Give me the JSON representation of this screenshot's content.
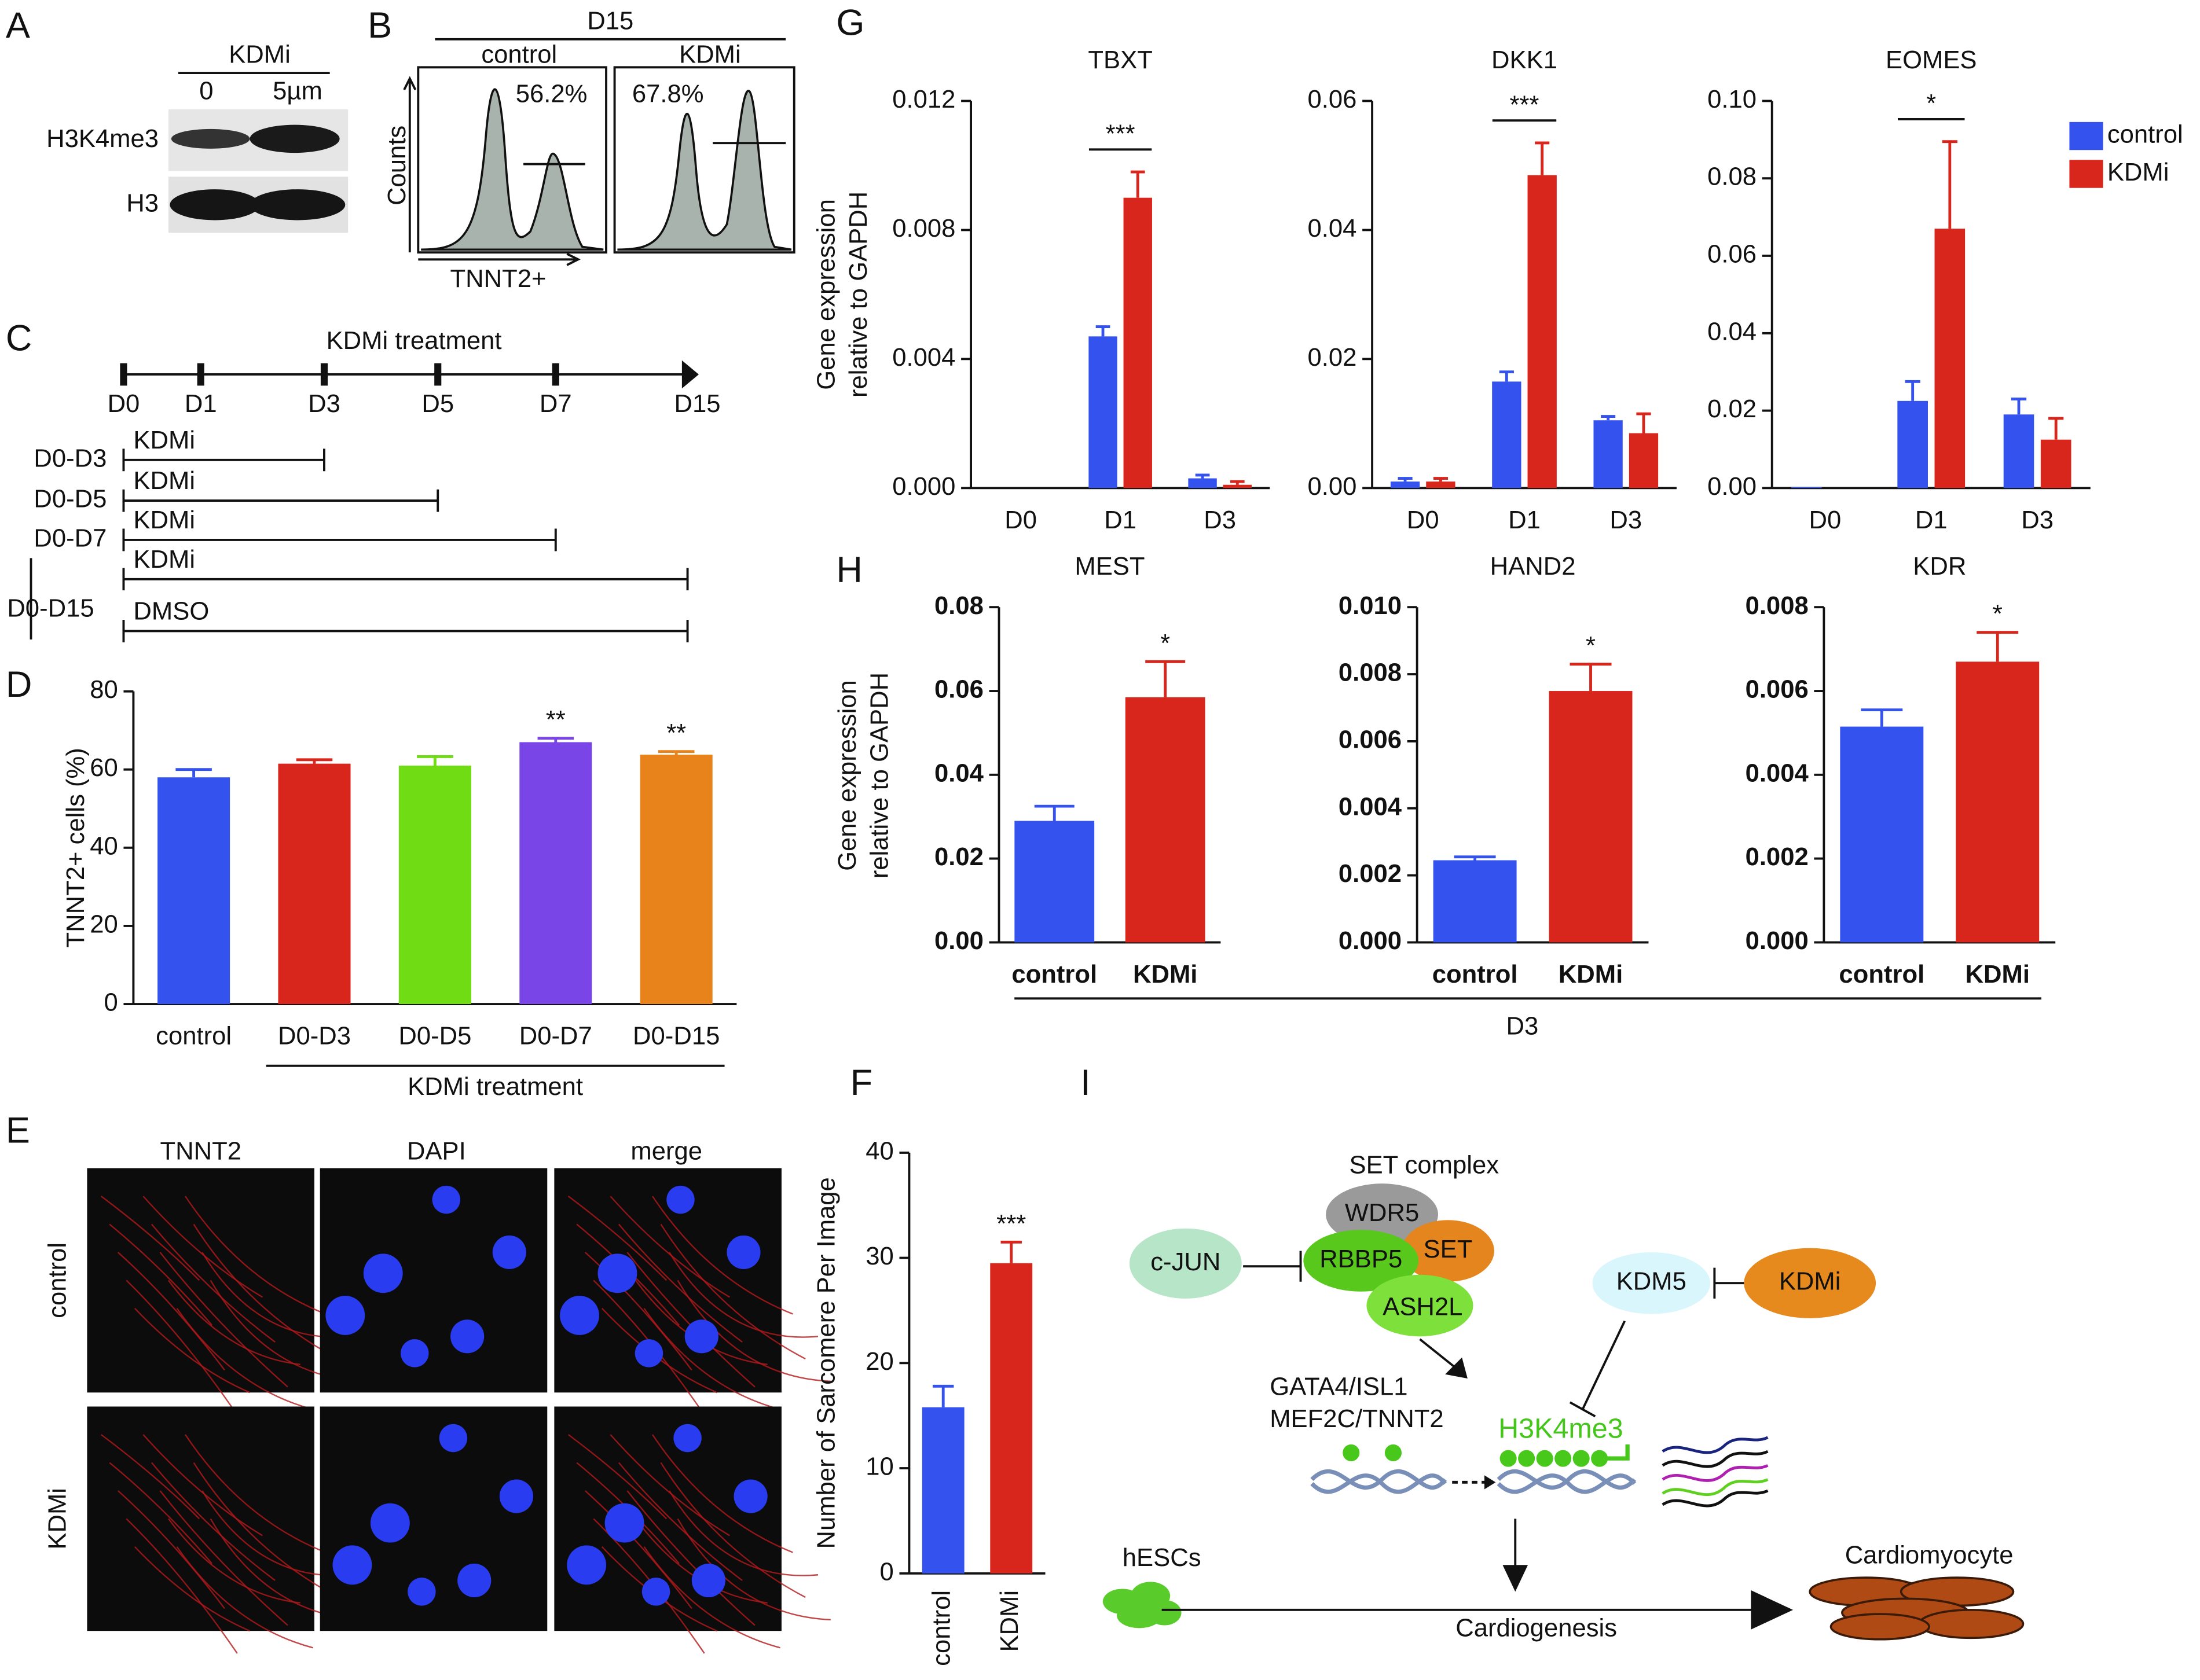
{
  "panel_letters": [
    "A",
    "B",
    "C",
    "D",
    "E",
    "F",
    "G",
    "H",
    "I"
  ],
  "western": {
    "treatment": "KDMi",
    "doses": [
      "0",
      "5µm"
    ],
    "proteins": [
      "H3K4me3",
      "H3"
    ]
  },
  "flow": {
    "day": "D15",
    "groups": [
      "control",
      "KDMi"
    ],
    "gates": [
      "56.2%",
      "67.8%"
    ],
    "y_label": "Counts",
    "x_label": "TNNT2+"
  },
  "timeline": {
    "title": "KDMi treatment",
    "days": [
      "D0",
      "D1",
      "D3",
      "D5",
      "D7",
      "D15"
    ],
    "regimens": [
      {
        "label": "D0-D3",
        "drug": "KDMi"
      },
      {
        "label": "D0-D5",
        "drug": "KDMi"
      },
      {
        "label": "D0-D7",
        "drug": "KDMi"
      },
      {
        "drug": "KDMi"
      },
      {
        "drug": "DMSO"
      }
    ],
    "long_label": "D0-D15"
  },
  "imaging": {
    "stains": [
      "TNNT2",
      "DAPI",
      "merge"
    ],
    "conditions": [
      "control",
      "KDMi"
    ]
  },
  "panel_g": {
    "y_label": [
      "Gene expression",
      "relative to GAPDH"
    ]
  },
  "panel_h": {
    "y_label": [
      "Gene expression",
      "relative to GAPDH"
    ],
    "group_label": "D3"
  },
  "diagram": {
    "complex": "SET complex",
    "subunits": [
      "WDR5",
      "RBBP5",
      "SET",
      "ASH2L"
    ],
    "activator_inhibitor": "c-JUN",
    "demethylase": "KDM5",
    "inhibitor": "KDMi",
    "genes": [
      "GATA4/ISL1",
      "MEF2C/TNNT2"
    ],
    "mark": "H3K4me3",
    "start": "hESCs",
    "end": "Cardiomyocyte",
    "process": "Cardiogenesis"
  },
  "chart_data": [
    {
      "type": "bar",
      "y_label": "TNNT2+ cells (%)",
      "group_label": "KDMi treatment",
      "categories": [
        "control",
        "D0-D3",
        "D0-D5",
        "D0-D7",
        "D0-D15"
      ],
      "values": [
        58,
        61.5,
        61,
        67,
        63.8
      ],
      "errors": [
        2,
        1,
        2.3,
        1,
        0.8
      ],
      "colors": [
        "#3352ee",
        "#d9261c",
        "#6fdc14",
        "#7a45e6",
        "#e8831c"
      ],
      "significance": [
        null,
        null,
        null,
        "**",
        "**"
      ],
      "ylim": [
        0,
        80
      ],
      "yticks": [
        0,
        20,
        40,
        60,
        80
      ]
    },
    {
      "type": "bar",
      "y_label": "Number of Sarcomere Per Image",
      "categories": [
        "control",
        "KDMi"
      ],
      "values": [
        15.8,
        29.5
      ],
      "errors": [
        2,
        2
      ],
      "colors": [
        "#3352ee",
        "#d9261c"
      ],
      "significance": [
        null,
        "***"
      ],
      "ylim": [
        0,
        40
      ],
      "yticks": [
        0,
        10,
        20,
        30,
        40
      ]
    },
    {
      "type": "bar",
      "title": "TBXT",
      "categories": [
        "D0",
        "D1",
        "D3"
      ],
      "series": [
        {
          "name": "control",
          "color": "#3352ee",
          "values": [
            0,
            0.0047,
            0.0003
          ],
          "errors": [
            0,
            0.0003,
            0.0001
          ]
        },
        {
          "name": "KDMi",
          "color": "#d9261c",
          "values": [
            0,
            0.009,
            0.0001
          ],
          "errors": [
            0,
            0.0008,
            0.0001
          ]
        }
      ],
      "significance": [
        null,
        "***",
        null
      ],
      "ylim": [
        0,
        0.012
      ],
      "yticks": [
        {
          "value": 0,
          "label": "0.000"
        },
        0.004,
        0.008,
        0.012
      ]
    },
    {
      "type": "bar",
      "title": "DKK1",
      "categories": [
        "D0",
        "D1",
        "D3"
      ],
      "series": [
        {
          "name": "control",
          "color": "#3352ee",
          "values": [
            0.001,
            0.0165,
            0.0105
          ],
          "errors": [
            0.0005,
            0.0015,
            0.0006
          ]
        },
        {
          "name": "KDMi",
          "color": "#d9261c",
          "values": [
            0.001,
            0.0485,
            0.0085
          ],
          "errors": [
            0.0005,
            0.005,
            0.003
          ]
        }
      ],
      "significance": [
        null,
        "***",
        null
      ],
      "ylim": [
        0,
        0.06
      ],
      "yticks": [
        {
          "value": 0,
          "label": "0.00"
        },
        0.02,
        0.04,
        0.06
      ]
    },
    {
      "type": "bar",
      "title": "EOMES",
      "categories": [
        "D0",
        "D1",
        "D3"
      ],
      "legend": "upper right",
      "series": [
        {
          "name": "control",
          "color": "#3352ee",
          "values": [
            0.0003,
            0.0225,
            0.019
          ],
          "errors": [
            0,
            0.005,
            0.004
          ]
        },
        {
          "name": "KDMi",
          "color": "#d9261c",
          "values": [
            0,
            0.067,
            0.0125
          ],
          "errors": [
            0,
            0.0225,
            0.0055
          ]
        }
      ],
      "significance": [
        null,
        "*",
        null
      ],
      "ylim": [
        0,
        0.1
      ],
      "yticks": [
        {
          "value": 0,
          "label": "0.00"
        },
        0.02,
        0.04,
        0.06,
        0.08,
        {
          "value": 0.1,
          "label": "0.10"
        }
      ]
    },
    {
      "type": "bar",
      "title": "MEST",
      "categories": [
        "control",
        "KDMi"
      ],
      "values": [
        0.029,
        0.0585
      ],
      "errors": [
        0.0035,
        0.0085
      ],
      "colors": [
        "#3352ee",
        "#d9261c"
      ],
      "significance": [
        null,
        "*"
      ],
      "ylim": [
        0,
        0.08
      ],
      "yticks": [
        {
          "value": 0,
          "label": "0.00"
        },
        0.02,
        0.04,
        0.06,
        0.08
      ]
    },
    {
      "type": "bar",
      "title": "HAND2",
      "categories": [
        "control",
        "KDMi"
      ],
      "values": [
        0.00245,
        0.0075
      ],
      "errors": [
        0.0001,
        0.0008
      ],
      "colors": [
        "#3352ee",
        "#d9261c"
      ],
      "significance": [
        null,
        "*"
      ],
      "ylim": [
        0,
        0.01
      ],
      "yticks": [
        {
          "value": 0,
          "label": "0.000"
        },
        0.002,
        0.004,
        0.006,
        0.008,
        {
          "value": 0.01,
          "label": "0.010"
        }
      ]
    },
    {
      "type": "bar",
      "title": "KDR",
      "categories": [
        "control",
        "KDMi"
      ],
      "values": [
        0.00515,
        0.0067
      ],
      "errors": [
        0.0004,
        0.0007
      ],
      "colors": [
        "#3352ee",
        "#d9261c"
      ],
      "significance": [
        null,
        "*"
      ],
      "ylim": [
        0,
        0.008
      ],
      "yticks": [
        {
          "value": 0,
          "label": "0.000"
        },
        0.002,
        0.004,
        0.006,
        0.008
      ]
    }
  ]
}
